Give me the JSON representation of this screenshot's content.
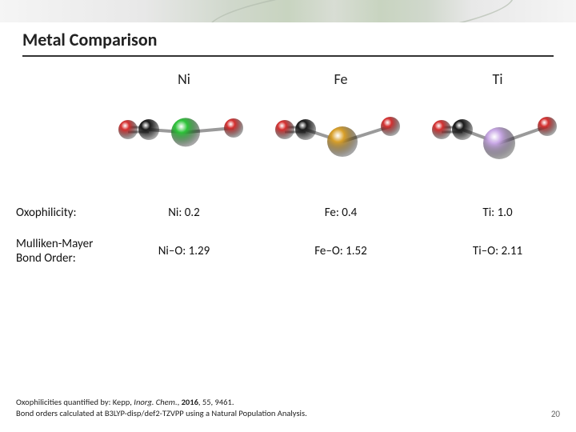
{
  "title": "Metal Comparison",
  "row_labels": {
    "oxophilicity": "Oxophilicity:",
    "bond_order": "Mulliken-Mayer\nBond Order:"
  },
  "metals": [
    {
      "key": "ni",
      "header": "Ni",
      "oxophilicity": "Ni: 0.2",
      "bond_order": "Ni–O: 1.29",
      "metal_color": "#2ec43a",
      "metal_radius": 18,
      "bend_deg": 6
    },
    {
      "key": "fe",
      "header": "Fe",
      "oxophilicity": "Fe: 0.4",
      "bond_order": "Fe–O: 1.52",
      "metal_color": "#d9a02a",
      "metal_radius": 19,
      "bend_deg": 28
    },
    {
      "key": "ti",
      "header": "Ti",
      "oxophilicity": "Ti: 1.0",
      "bond_order": "Ti–O: 2.11",
      "metal_color": "#c9a8e6",
      "metal_radius": 20,
      "bend_deg": 32
    }
  ],
  "atom_palette": {
    "oxygen": "#d63030",
    "carbon": "#1a1a1a",
    "bond": "#9a9a9a"
  },
  "footnotes": {
    "line1_plain1": "Oxophilicities quantified by: Kepp, ",
    "line1_journal": "Inorg. Chem.",
    "line1_plain2": ", ",
    "line1_year": "2016",
    "line1_plain3": ", 55, 9461.",
    "line2": "Bond orders calculated at B3LYP-disp/def2-TZVPP using a Natural Population Analysis."
  },
  "slide_number": "20"
}
